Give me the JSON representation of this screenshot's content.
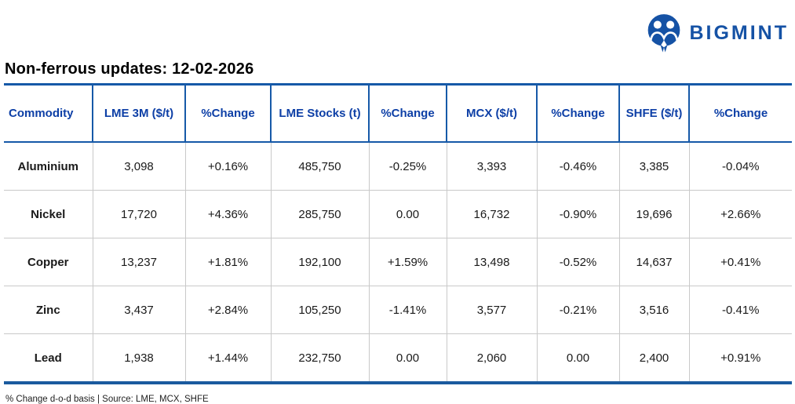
{
  "brand": {
    "name": "BIGMINT",
    "logo_icon": "bigmint-m-circle-icon"
  },
  "title": "Non-ferrous updates: 12-02-2026",
  "table": {
    "columns": [
      "Commodity",
      "LME 3M ($/t)",
      "%Change",
      "LME Stocks (t)",
      "%Change",
      "MCX ($/t)",
      "%Change",
      "SHFE ($/t)",
      "%Change"
    ],
    "rows": [
      {
        "commodity": "Aluminium",
        "values": [
          {
            "text": "3,098",
            "state": "plain"
          },
          {
            "text": "+0.16%",
            "state": "pos"
          },
          {
            "text": "485,750",
            "state": "plain"
          },
          {
            "text": "-0.25%",
            "state": "neg"
          },
          {
            "text": "3,393",
            "state": "plain"
          },
          {
            "text": "-0.46%",
            "state": "neg"
          },
          {
            "text": "3,385",
            "state": "plain"
          },
          {
            "text": "-0.04%",
            "state": "neg"
          }
        ]
      },
      {
        "commodity": "Nickel",
        "values": [
          {
            "text": "17,720",
            "state": "plain"
          },
          {
            "text": "+4.36%",
            "state": "pos"
          },
          {
            "text": "285,750",
            "state": "plain"
          },
          {
            "text": "0.00",
            "state": "plain"
          },
          {
            "text": "16,732",
            "state": "plain"
          },
          {
            "text": "-0.90%",
            "state": "neg"
          },
          {
            "text": "19,696",
            "state": "plain"
          },
          {
            "text": "+2.66%",
            "state": "pos"
          }
        ]
      },
      {
        "commodity": "Copper",
        "values": [
          {
            "text": "13,237",
            "state": "plain"
          },
          {
            "text": "+1.81%",
            "state": "pos"
          },
          {
            "text": "192,100",
            "state": "plain"
          },
          {
            "text": "+1.59%",
            "state": "pos"
          },
          {
            "text": "13,498",
            "state": "plain"
          },
          {
            "text": "-0.52%",
            "state": "neg"
          },
          {
            "text": "14,637",
            "state": "plain"
          },
          {
            "text": "+0.41%",
            "state": "pos"
          }
        ]
      },
      {
        "commodity": "Zinc",
        "values": [
          {
            "text": "3,437",
            "state": "plain"
          },
          {
            "text": "+2.84%",
            "state": "pos"
          },
          {
            "text": "105,250",
            "state": "plain"
          },
          {
            "text": "-1.41%",
            "state": "neg"
          },
          {
            "text": "3,577",
            "state": "plain"
          },
          {
            "text": "-0.21%",
            "state": "neg"
          },
          {
            "text": "3,516",
            "state": "plain"
          },
          {
            "text": "-0.41%",
            "state": "neg"
          }
        ]
      },
      {
        "commodity": "Lead",
        "values": [
          {
            "text": "1,938",
            "state": "plain"
          },
          {
            "text": "+1.44%",
            "state": "pos"
          },
          {
            "text": "232,750",
            "state": "plain"
          },
          {
            "text": "0.00",
            "state": "plain"
          },
          {
            "text": "2,060",
            "state": "plain"
          },
          {
            "text": "0.00",
            "state": "plain"
          },
          {
            "text": "2,400",
            "state": "plain"
          },
          {
            "text": "+0.91%",
            "state": "pos"
          }
        ]
      }
    ]
  },
  "footer": {
    "note": "% Change d-o-d basis | Source: LME, MCX, SHFE"
  },
  "colors": {
    "brand_blue": "#1552a5",
    "header_text_blue": "#0d3fa6",
    "table_border_blue": "#1659a8",
    "bottom_rule_blue": "#1a5a9e",
    "positive_green": "#00b050",
    "negative_red": "#ff0000",
    "row_divider_gray": "#c9c9c9"
  },
  "chart_data": {
    "type": "table",
    "title": "Non-ferrous updates: 12-02-2026",
    "columns": [
      "Commodity",
      "LME 3M ($/t)",
      "%Change",
      "LME Stocks (t)",
      "%Change",
      "MCX ($/t)",
      "%Change",
      "SHFE ($/t)",
      "%Change"
    ],
    "rows": [
      [
        "Aluminium",
        "3,098",
        "+0.16%",
        "485,750",
        "-0.25%",
        "3,393",
        "-0.46%",
        "3,385",
        "-0.04%"
      ],
      [
        "Nickel",
        "17,720",
        "+4.36%",
        "285,750",
        "0.00",
        "16,732",
        "-0.90%",
        "19,696",
        "+2.66%"
      ],
      [
        "Copper",
        "13,237",
        "+1.81%",
        "192,100",
        "+1.59%",
        "13,498",
        "-0.52%",
        "14,637",
        "+0.41%"
      ],
      [
        "Zinc",
        "3,437",
        "+2.84%",
        "105,250",
        "-1.41%",
        "3,577",
        "-0.21%",
        "3,516",
        "-0.41%"
      ],
      [
        "Lead",
        "1,938",
        "+1.44%",
        "232,750",
        "0.00",
        "2,060",
        "0.00",
        "2,400",
        "+0.91%"
      ]
    ],
    "footnote": "% Change d-o-d basis | Source: LME, MCX, SHFE"
  }
}
